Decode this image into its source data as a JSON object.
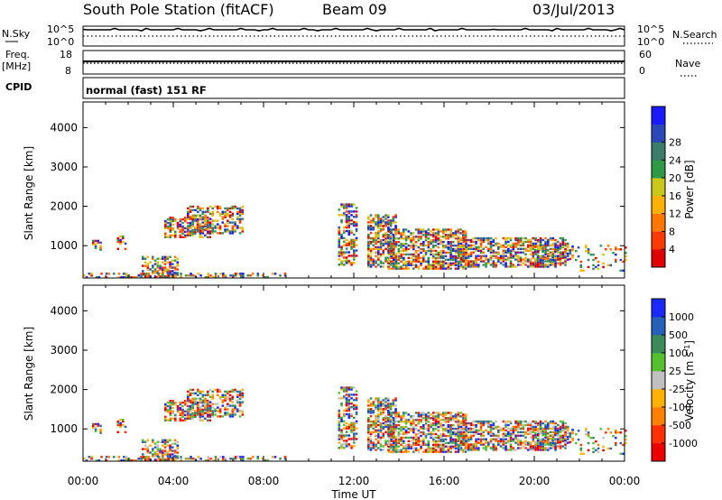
{
  "header": {
    "station": "South Pole Station (fitACF)",
    "beam": "Beam 09",
    "date": "03/Jul/2013"
  },
  "summary_panels": {
    "nsky": {
      "label": "N.Sky",
      "ticks": [
        "10^5",
        "10^0"
      ]
    },
    "nsearch": {
      "label": "N.Search",
      "ticks": [
        "10^5",
        "10^0"
      ]
    },
    "freq": {
      "label": "Freq.",
      "unit": "[MHz]",
      "ticks": [
        "18",
        "8"
      ]
    },
    "nave": {
      "label": "Nave",
      "ticks": [
        "60",
        "0"
      ]
    },
    "cpid": {
      "label": "CPID",
      "value": "normal (fast) 151 RF"
    }
  },
  "chart_data": [
    {
      "type": "heatmap",
      "name": "power-panel",
      "ylabel": "Slant Range [km]",
      "yticks": [
        1000,
        2000,
        3000,
        4000
      ],
      "ylim": [
        180,
        4650
      ],
      "xlim": [
        0,
        24
      ],
      "xticks": [
        "00:00",
        "04:00",
        "08:00",
        "12:00",
        "16:00",
        "20:00",
        "00:00"
      ],
      "colorbar": {
        "label": "Power [dB]",
        "ticks": [
          "4",
          "8",
          "12",
          "16",
          "20",
          "24",
          "28"
        ],
        "colors": [
          "#1a1aff",
          "#2a48b8",
          "#3a7e6a",
          "#2f9a46",
          "#c8c819",
          "#ffb000",
          "#ff7700",
          "#ff3a00",
          "#e00000"
        ]
      }
    },
    {
      "type": "heatmap",
      "name": "velocity-panel",
      "ylabel": "Slant Range [km]",
      "yticks": [
        1000,
        2000,
        3000,
        4000
      ],
      "ylim": [
        180,
        4650
      ],
      "xlim": [
        0,
        24
      ],
      "xticks": [
        "00:00",
        "04:00",
        "08:00",
        "12:00",
        "16:00",
        "20:00",
        "00:00"
      ],
      "xlabel": "Time UT",
      "colorbar": {
        "label": "Velocity [m s",
        "label_sup": "-1",
        "label_end": "]",
        "ticks": [
          "1000",
          "500",
          "100",
          "25",
          "-25",
          "-100",
          "-500",
          "-1000"
        ],
        "colors": [
          "#1a2aff",
          "#2660b8",
          "#3a8a5a",
          "#55c030",
          "#c0c0c0",
          "#ffb000",
          "#ff8000",
          "#ff3000",
          "#ee0000"
        ]
      }
    }
  ]
}
